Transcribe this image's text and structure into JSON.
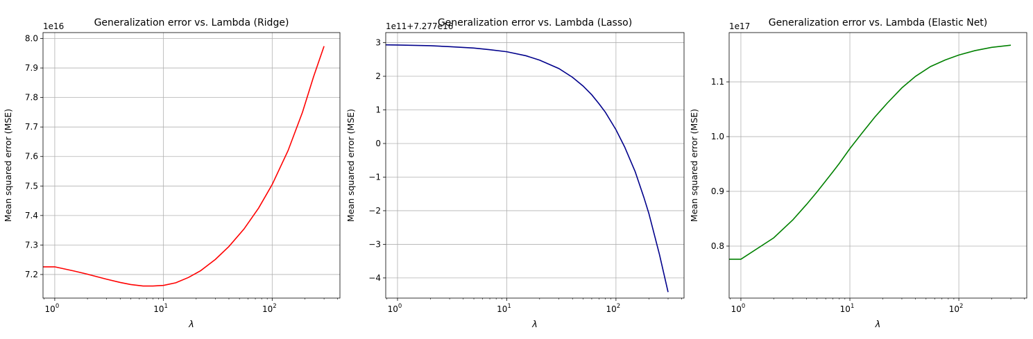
{
  "chart_data": [
    {
      "type": "line",
      "title": "Generalization error vs. Lambda (Ridge)",
      "xlabel": "λ",
      "ylabel": "Mean squared error (MSE)",
      "xscale": "log",
      "xlim": [
        0.78,
        420
      ],
      "ylim": [
        7.12,
        8.02
      ],
      "y_offset_label": "1e16",
      "y_multiplier": 1e+16,
      "grid": true,
      "color": "#ff0000",
      "xticks": [
        {
          "value": 1,
          "base": "10",
          "exp": "0"
        },
        {
          "value": 10,
          "base": "10",
          "exp": "1"
        },
        {
          "value": 100,
          "base": "10",
          "exp": "2"
        }
      ],
      "yticks": [
        {
          "value": 7.2,
          "label": "7.2"
        },
        {
          "value": 7.3,
          "label": "7.3"
        },
        {
          "value": 7.4,
          "label": "7.4"
        },
        {
          "value": 7.5,
          "label": "7.5"
        },
        {
          "value": 7.6,
          "label": "7.6"
        },
        {
          "value": 7.7,
          "label": "7.7"
        },
        {
          "value": 7.8,
          "label": "7.8"
        },
        {
          "value": 7.9,
          "label": "7.9"
        },
        {
          "value": 8.0,
          "label": "8.0"
        }
      ],
      "series": [
        {
          "x": [
            0.6,
            1,
            1.5,
            2,
            3,
            4,
            5,
            6.5,
            8,
            10,
            13,
            17,
            22,
            30,
            40,
            55,
            75,
            100,
            140,
            190,
            240,
            300
          ],
          "y": [
            7.226,
            7.226,
            7.212,
            7.201,
            7.184,
            7.173,
            7.166,
            7.161,
            7.161,
            7.163,
            7.172,
            7.19,
            7.213,
            7.251,
            7.295,
            7.354,
            7.425,
            7.505,
            7.62,
            7.75,
            7.87,
            7.974
          ]
        }
      ]
    },
    {
      "type": "line",
      "title": "Generalization error vs. Lambda (Lasso)",
      "xlabel": "λ",
      "ylabel": "Mean squared error (MSE)",
      "xscale": "log",
      "xlim": [
        0.78,
        420
      ],
      "ylim": [
        -4.6,
        3.3
      ],
      "y_offset_label": "1e11+7.277e16",
      "y_multiplier": 100000000000.0,
      "y_offset": 7.277e+16,
      "grid": true,
      "color": "#00008b",
      "xticks": [
        {
          "value": 1,
          "base": "10",
          "exp": "0"
        },
        {
          "value": 10,
          "base": "10",
          "exp": "1"
        },
        {
          "value": 100,
          "base": "10",
          "exp": "2"
        }
      ],
      "yticks": [
        {
          "value": -4,
          "label": "−4"
        },
        {
          "value": -3,
          "label": "−3"
        },
        {
          "value": -2,
          "label": "−2"
        },
        {
          "value": -1,
          "label": "−1"
        },
        {
          "value": 0,
          "label": "0"
        },
        {
          "value": 1,
          "label": "1"
        },
        {
          "value": 2,
          "label": "2"
        },
        {
          "value": 3,
          "label": "3"
        }
      ],
      "series": [
        {
          "x": [
            0.6,
            1,
            2,
            3,
            5,
            7,
            10,
            15,
            20,
            30,
            40,
            50,
            60,
            70,
            80,
            100,
            120,
            150,
            180,
            200,
            250,
            300
          ],
          "y": [
            2.94,
            2.93,
            2.91,
            2.88,
            2.84,
            2.79,
            2.73,
            2.61,
            2.48,
            2.23,
            1.97,
            1.71,
            1.45,
            1.18,
            0.93,
            0.41,
            -0.1,
            -0.84,
            -1.6,
            -2.08,
            -3.3,
            -4.42
          ]
        }
      ]
    },
    {
      "type": "line",
      "title": "Generalization error vs. Lambda (Elastic Net)",
      "xlabel": "λ",
      "ylabel": "Mean squared error (MSE)",
      "xscale": "log",
      "xlim": [
        0.78,
        420
      ],
      "ylim": [
        0.705,
        1.19
      ],
      "y_offset_label": "1e17",
      "y_multiplier": 1e+17,
      "grid": true,
      "color": "#008000",
      "xticks": [
        {
          "value": 1,
          "base": "10",
          "exp": "0"
        },
        {
          "value": 10,
          "base": "10",
          "exp": "1"
        },
        {
          "value": 100,
          "base": "10",
          "exp": "2"
        }
      ],
      "yticks": [
        {
          "value": 0.8,
          "label": "0.8"
        },
        {
          "value": 0.9,
          "label": "0.9"
        },
        {
          "value": 1.0,
          "label": "1.0"
        },
        {
          "value": 1.1,
          "label": "1.1"
        }
      ],
      "series": [
        {
          "x": [
            0.6,
            1,
            2,
            3,
            4,
            5,
            6,
            7,
            8,
            10,
            13,
            17,
            22,
            30,
            40,
            55,
            75,
            100,
            140,
            200,
            300
          ],
          "y": [
            0.776,
            0.776,
            0.815,
            0.848,
            0.876,
            0.899,
            0.919,
            0.936,
            0.951,
            0.978,
            1.007,
            1.036,
            1.061,
            1.089,
            1.11,
            1.128,
            1.14,
            1.149,
            1.157,
            1.163,
            1.167
          ]
        }
      ]
    }
  ]
}
